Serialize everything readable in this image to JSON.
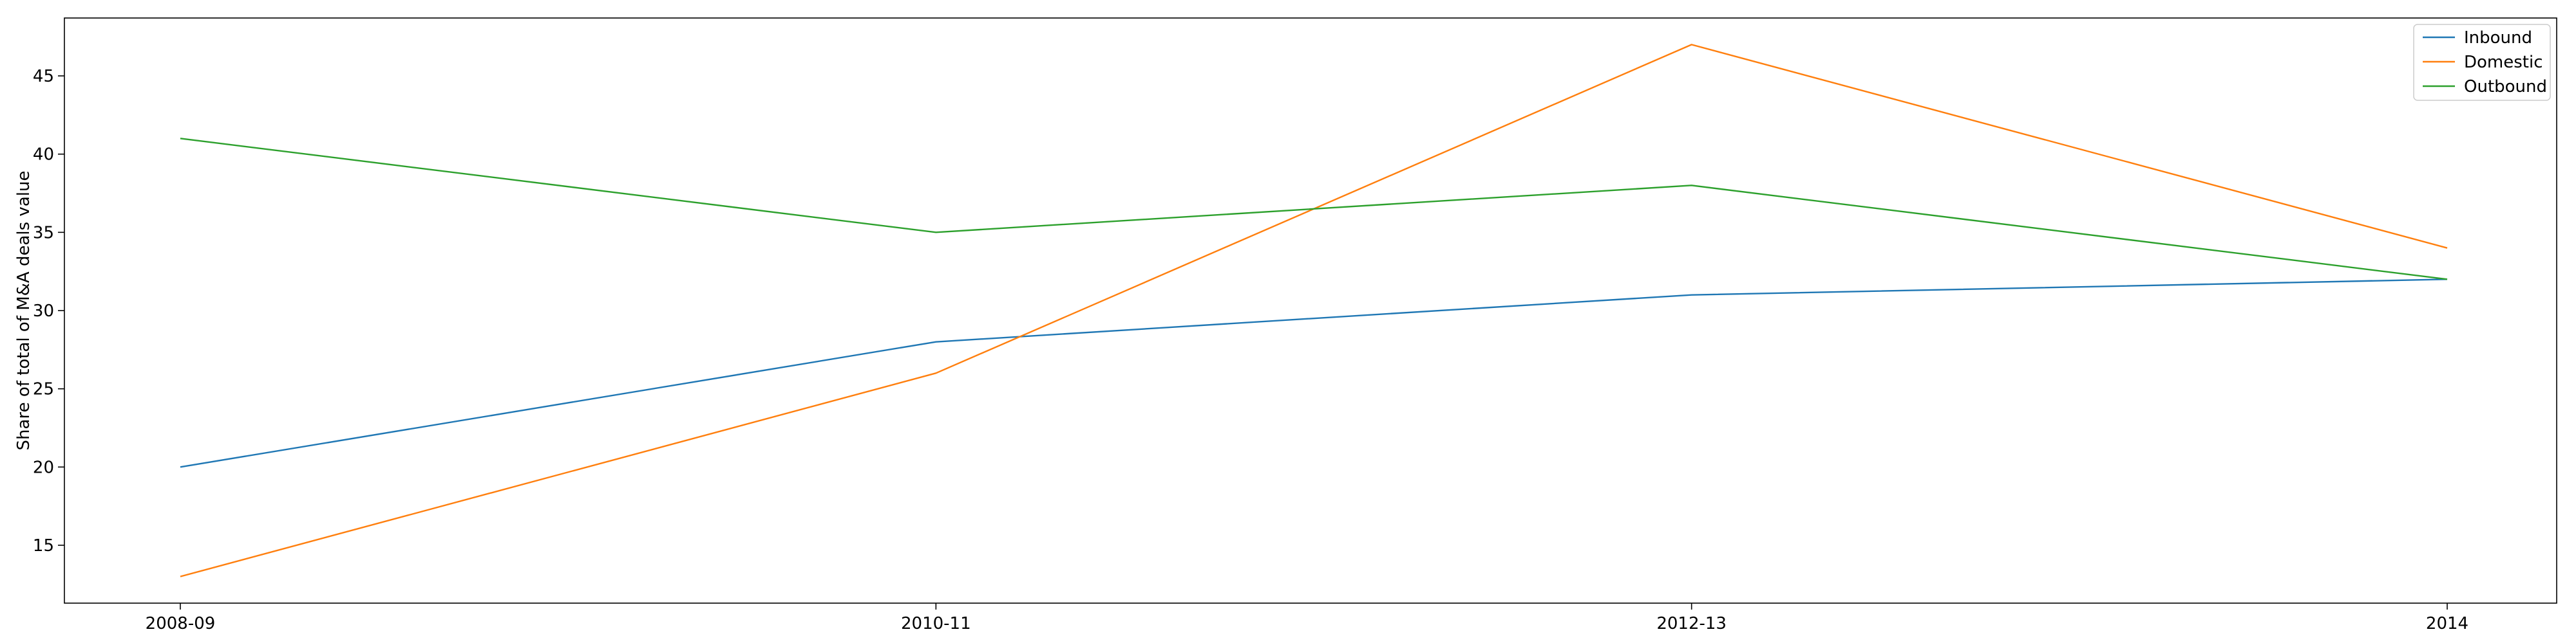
{
  "chart_data": {
    "type": "line",
    "title": "",
    "xlabel": "",
    "ylabel": "Share of total of M&A deals value",
    "categories": [
      "2008-09",
      "2010-11",
      "2012-13",
      "2014"
    ],
    "series": [
      {
        "name": "Inbound",
        "color": "#1f77b4",
        "values": [
          20,
          28,
          31,
          32
        ]
      },
      {
        "name": "Domestic",
        "color": "#ff7f0e",
        "values": [
          13,
          26,
          47,
          34
        ]
      },
      {
        "name": "Outbound",
        "color": "#2ca02c",
        "values": [
          41,
          35,
          38,
          32
        ]
      }
    ],
    "ylim": [
      11.3,
      48.7
    ],
    "yticks": [
      15,
      20,
      25,
      30,
      35,
      40,
      45
    ],
    "grid": false,
    "legend_position": "top-right"
  }
}
